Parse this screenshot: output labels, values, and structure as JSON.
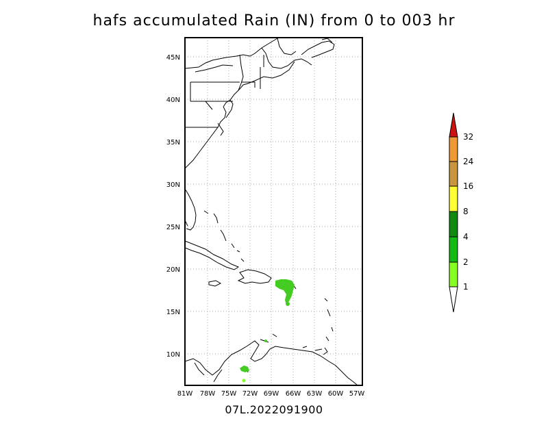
{
  "title": "hafs accumulated Rain (IN) from 0 to 003 hr",
  "footer": "07L.2022091900",
  "map": {
    "lat_ticks": [
      "45N",
      "40N",
      "35N",
      "30N",
      "25N",
      "20N",
      "15N",
      "10N"
    ],
    "lon_ticks": [
      "81W",
      "78W",
      "75W",
      "72W",
      "69W",
      "66W",
      "63W",
      "60W",
      "57W"
    ],
    "lat_range": [
      6.5,
      47.5
    ],
    "lon_range": [
      -81,
      -56
    ],
    "grid": true
  },
  "colorbar": {
    "labels": [
      "1",
      "2",
      "4",
      "8",
      "16",
      "24",
      "32"
    ],
    "colors": [
      "#88ff22",
      "#11bb11",
      "#118811",
      "#ffff33",
      "#c8963c",
      "#ee9933",
      "#cc1111"
    ]
  },
  "rain_areas": [
    {
      "name": "puerto-rico-rain",
      "color": "#44cc22"
    },
    {
      "name": "leeward-islands-rain",
      "color": "#44cc22"
    },
    {
      "name": "south-caribbean-rain",
      "color": "#44cc22"
    }
  ]
}
